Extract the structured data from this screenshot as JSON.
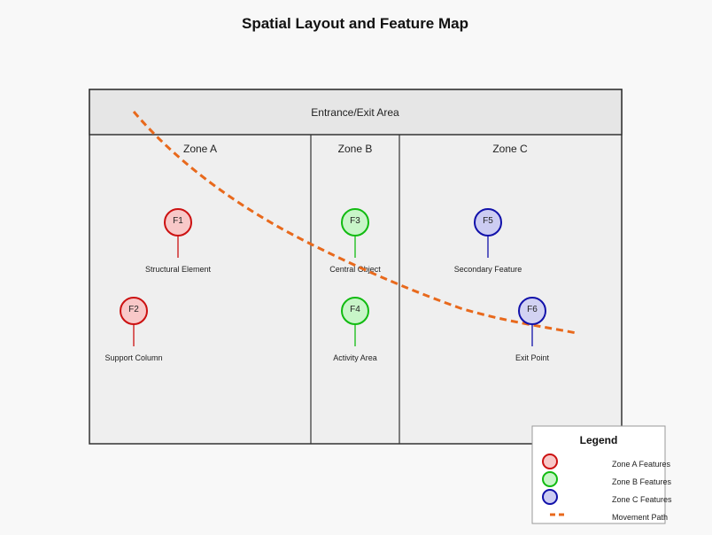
{
  "title": "Spatial Layout and Feature Map",
  "entrance_label": "Entrance/Exit Area",
  "zones": [
    {
      "id": "a",
      "label": "Zone A"
    },
    {
      "id": "b",
      "label": "Zone B"
    },
    {
      "id": "c",
      "label": "Zone C"
    }
  ],
  "colors": {
    "zone_a_stroke": "#cc1111",
    "zone_a_fill": "#f8c8c8",
    "zone_b_stroke": "#11bb11",
    "zone_b_fill": "#c8f5c8",
    "zone_c_stroke": "#1111aa",
    "zone_c_fill": "#ccccf2",
    "movement_path": "#e8691c",
    "panel_fill": "#efefef",
    "border": "#333333"
  },
  "features": [
    {
      "id": "F1",
      "label": "Structural Element",
      "zone": "a"
    },
    {
      "id": "F2",
      "label": "Support Column",
      "zone": "a"
    },
    {
      "id": "F3",
      "label": "Central Object",
      "zone": "b"
    },
    {
      "id": "F4",
      "label": "Activity Area",
      "zone": "b"
    },
    {
      "id": "F5",
      "label": "Secondary Feature",
      "zone": "c"
    },
    {
      "id": "F6",
      "label": "Exit Point",
      "zone": "c"
    }
  ],
  "legend": {
    "title": "Legend",
    "items": [
      {
        "label": "Zone A Features",
        "kind": "marker-a"
      },
      {
        "label": "Zone B Features",
        "kind": "marker-b"
      },
      {
        "label": "Zone C Features",
        "kind": "marker-c"
      },
      {
        "label": "Movement Path",
        "kind": "path"
      }
    ]
  }
}
